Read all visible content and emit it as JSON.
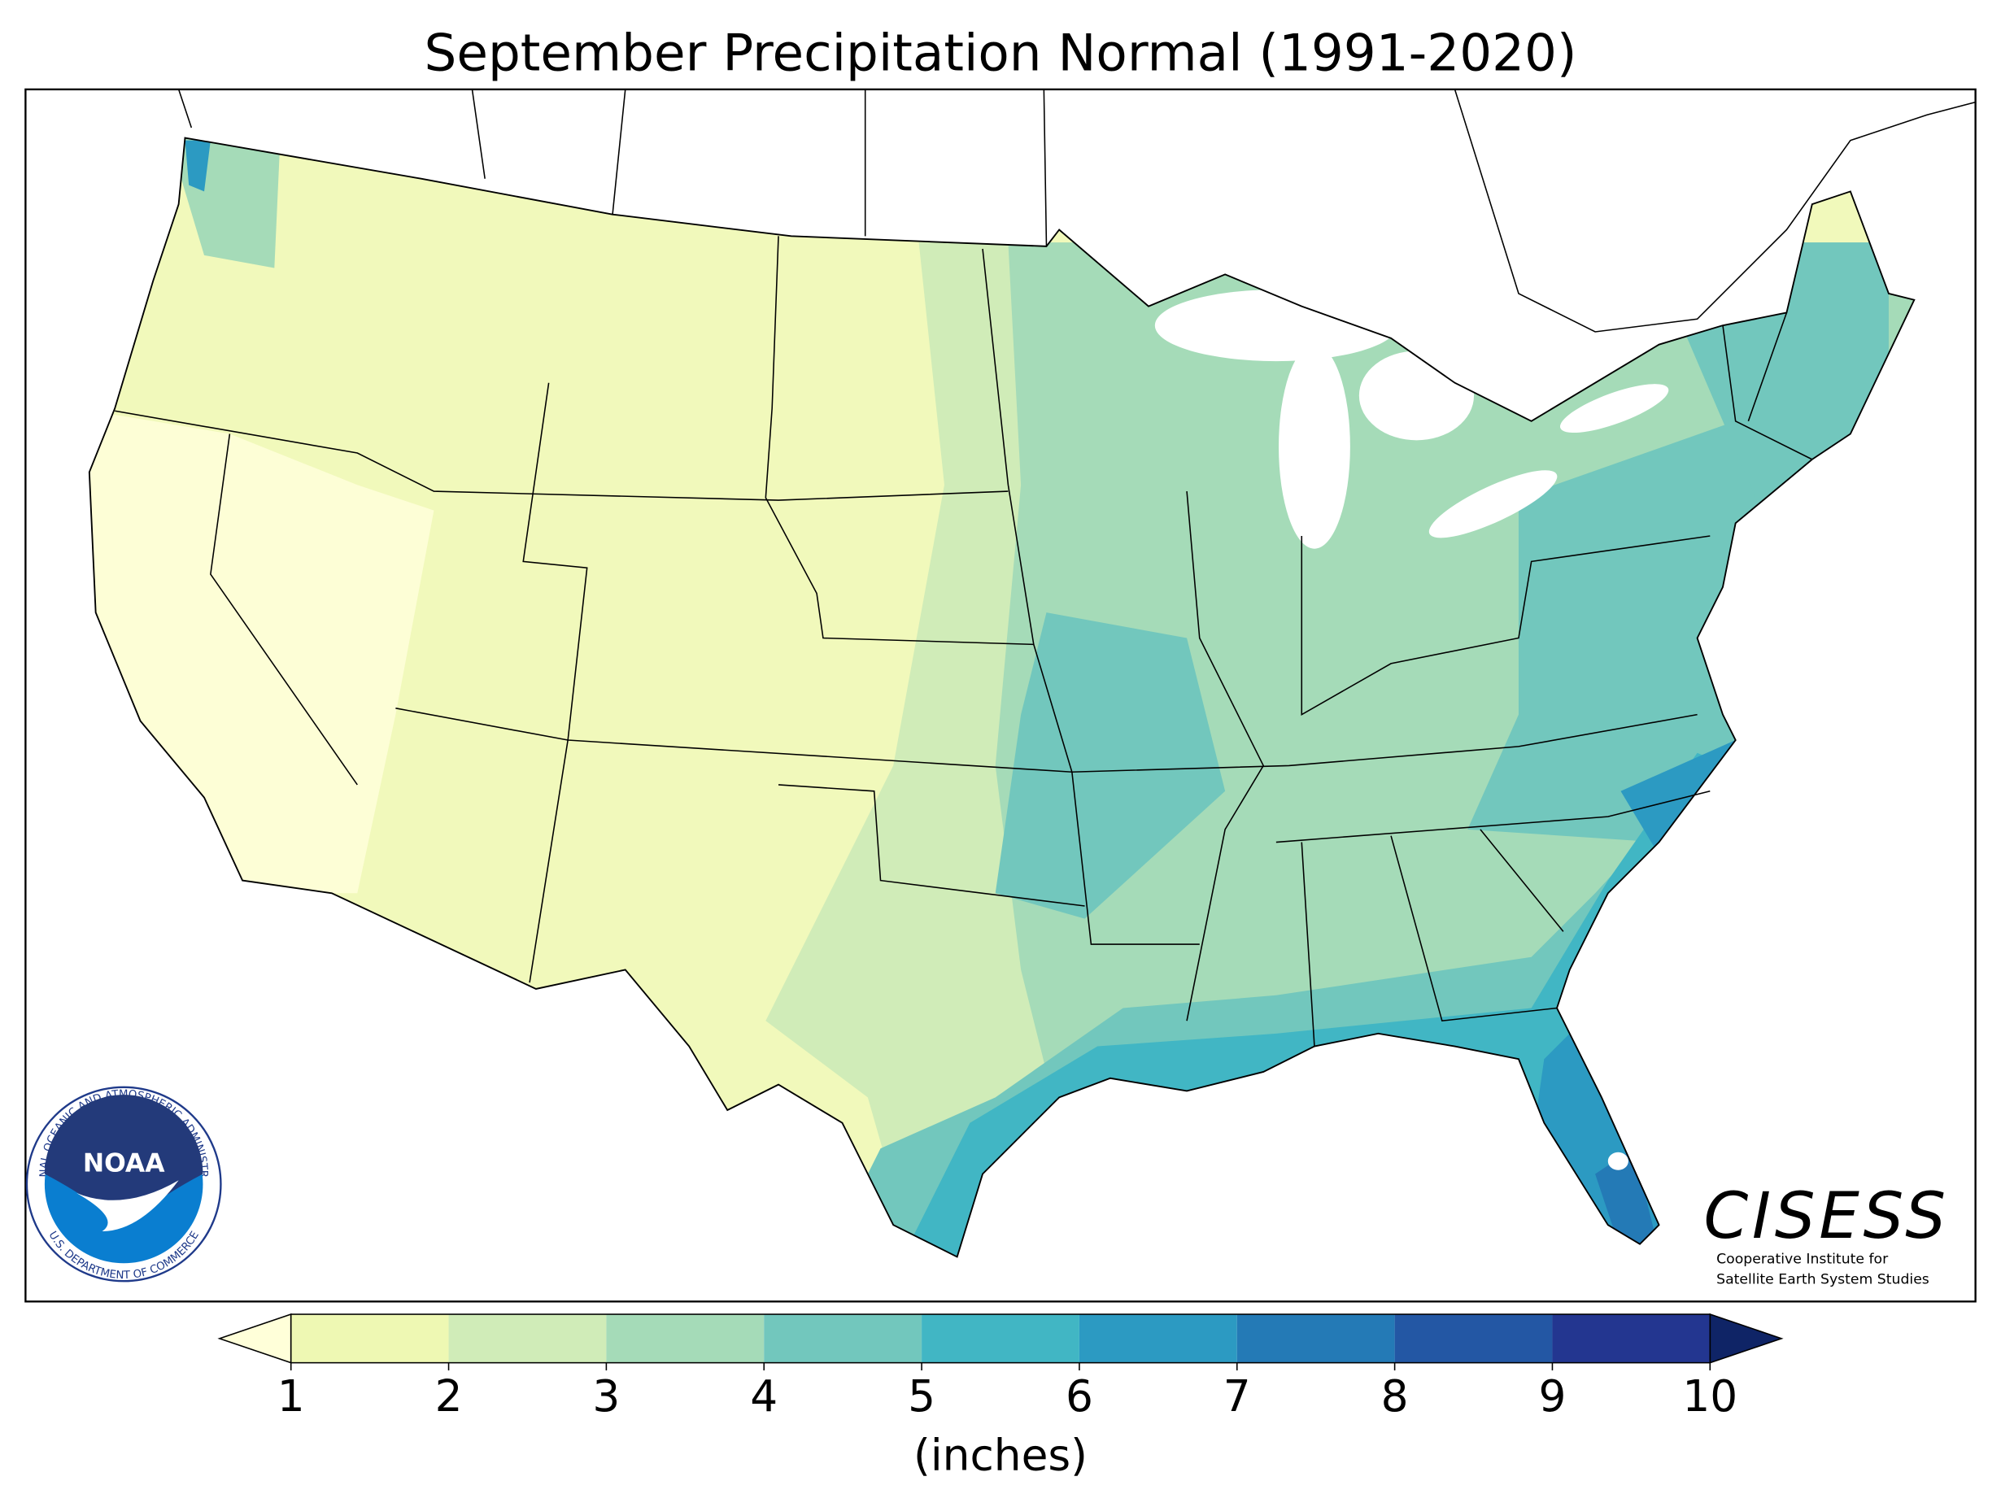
{
  "title": "September Precipitation Normal (1991-2020)",
  "colorbar": {
    "label": "(inches)",
    "lim": [
      1,
      10
    ],
    "ticks": [
      1,
      2,
      3,
      4,
      5,
      6,
      7,
      8,
      9,
      10
    ],
    "under_color": "#ffffd9",
    "over_color": "#0f2466",
    "colors": [
      "#eef8b3",
      "#d0ecb8",
      "#a5dbb8",
      "#72c7bd",
      "#41b6c4",
      "#2c9ac2",
      "#247ab6",
      "#2357a4",
      "#233690"
    ]
  },
  "logos": {
    "noaa": {
      "name": "NOAA",
      "ring_top": "NATIONAL OCEANIC AND ATMOSPHERIC ADMINISTRATION",
      "ring_bottom": "U.S. DEPARTMENT OF COMMERCE"
    },
    "cisess": {
      "name": "CISESS",
      "line1": "Cooperative Institute for",
      "line2": "Satellite Earth System Studies"
    }
  }
}
